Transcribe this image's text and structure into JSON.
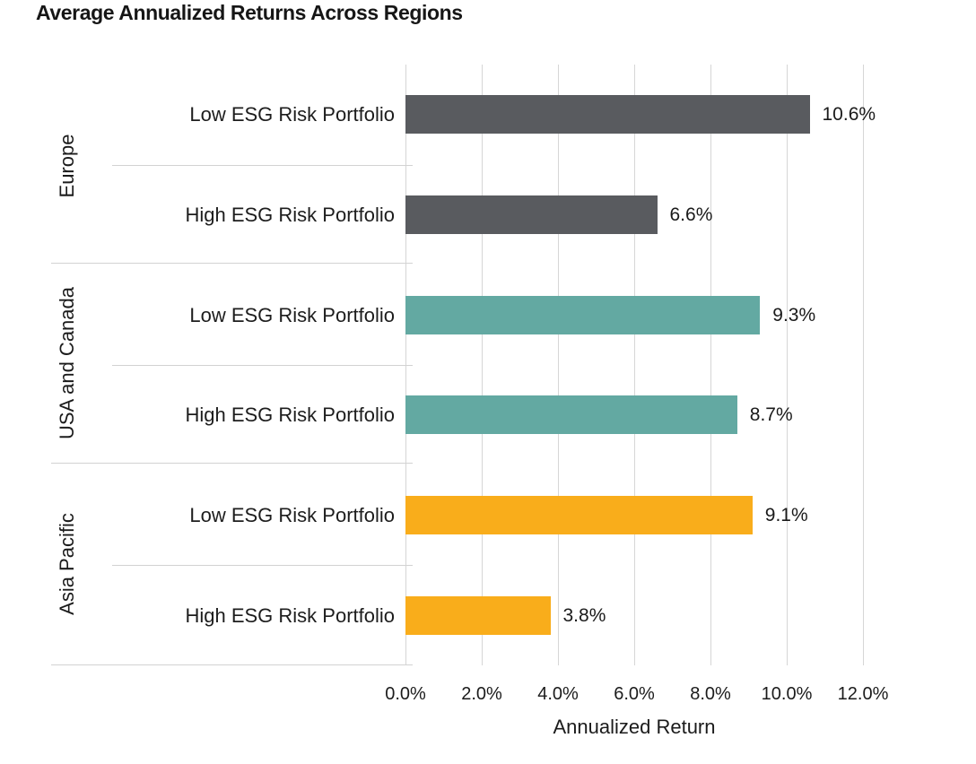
{
  "title": "Average Annualized Returns Across Regions",
  "chart_data": {
    "type": "bar",
    "orientation": "horizontal",
    "title": "Average Annualized Returns Across Regions",
    "xlabel": "Annualized Return",
    "xlim": [
      0,
      12
    ],
    "grid": true,
    "x_ticks": [
      "0.0%",
      "2.0%",
      "4.0%",
      "6.0%",
      "8.0%",
      "10.0%",
      "12.0%"
    ],
    "groups": [
      {
        "region": "Europe",
        "color": "#595b5f",
        "rows": [
          {
            "label": "Low ESG Risk Portfolio",
            "value": 10.6,
            "value_label": "10.6%"
          },
          {
            "label": "High ESG Risk Portfolio",
            "value": 6.6,
            "value_label": "6.6%"
          }
        ]
      },
      {
        "region": "USA and Canada",
        "color": "#63a9a2",
        "rows": [
          {
            "label": "Low ESG Risk Portfolio",
            "value": 9.3,
            "value_label": "9.3%"
          },
          {
            "label": "High ESG Risk Portfolio",
            "value": 8.7,
            "value_label": "8.7%"
          }
        ]
      },
      {
        "region": "Asia Pacific",
        "color": "#f9ad1b",
        "rows": [
          {
            "label": "Low ESG Risk Portfolio",
            "value": 9.1,
            "value_label": "9.1%"
          },
          {
            "label": "High ESG Risk Portfolio",
            "value": 3.8,
            "value_label": "3.8%"
          }
        ]
      }
    ]
  }
}
